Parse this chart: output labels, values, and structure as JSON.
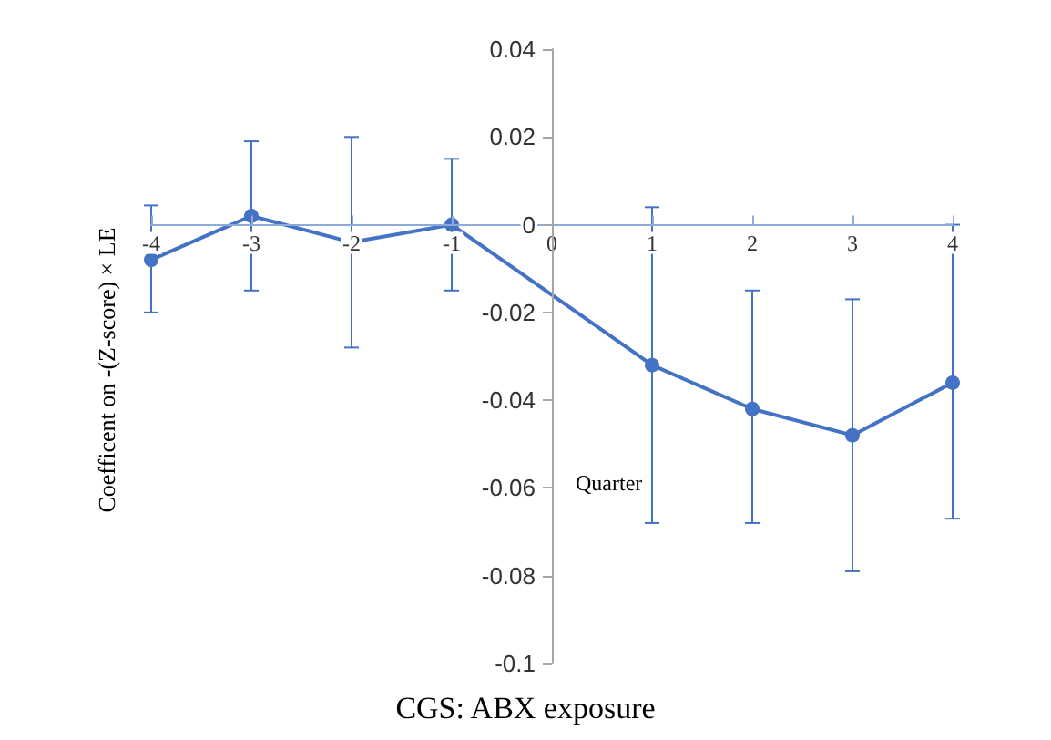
{
  "chart_data": {
    "type": "line",
    "title": "CGS: ABX exposure",
    "xlabel": "Quarter",
    "ylabel": "Coefficent on -(Z-score) × LE",
    "x": [
      -4,
      -3,
      -2,
      -1,
      1,
      2,
      3,
      4
    ],
    "series": [
      {
        "color": "#4472c4",
        "values": [
          -0.008,
          0.002,
          -0.004,
          0,
          -0.032,
          -0.042,
          -0.048,
          -0.036
        ],
        "errors": [
          [
            -0.02,
            0.0044
          ],
          [
            -0.015,
            0.019
          ],
          [
            -0.028,
            0.02
          ],
          [
            -0.015,
            0.015
          ],
          [
            -0.068,
            0.004
          ],
          [
            -0.068,
            -0.015
          ],
          [
            -0.079,
            -0.017
          ],
          [
            -0.067,
            0
          ]
        ]
      }
    ],
    "xlim": [
      -4,
      4
    ],
    "xticks": [
      -4,
      -3,
      -2,
      -1,
      0,
      1,
      2,
      3,
      4
    ],
    "ylim": [
      -0.1,
      0.04
    ],
    "yticks": [
      -0.1,
      -0.08,
      -0.06,
      -0.04,
      -0.02,
      0,
      0.02,
      0.04
    ],
    "grid": false,
    "marker": "circle",
    "line_style": "solid"
  }
}
